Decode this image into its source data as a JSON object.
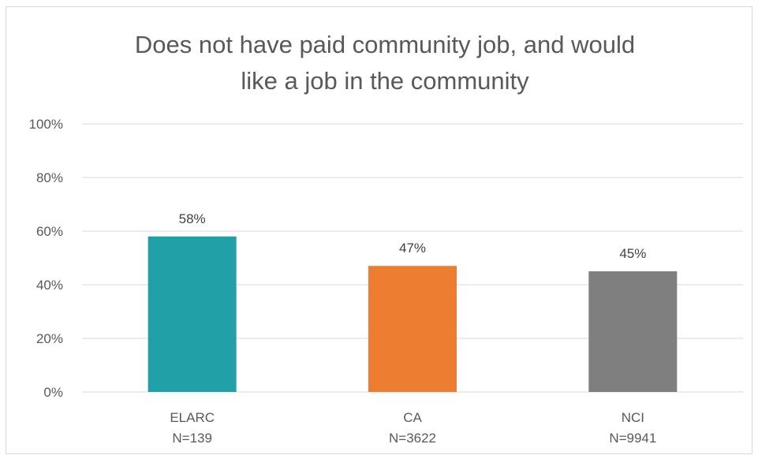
{
  "chart_data": {
    "type": "bar",
    "title_lines": [
      "Does not have paid community job, and would",
      "like a job in the community"
    ],
    "categories": [
      {
        "name": "ELARC",
        "n": "N=139"
      },
      {
        "name": "CA",
        "n": "N=3622"
      },
      {
        "name": "NCI",
        "n": "N=9941"
      }
    ],
    "values": [
      58,
      47,
      45
    ],
    "data_labels": [
      "58%",
      "47%",
      "45%"
    ],
    "colors": [
      "#21A0A8",
      "#ED7D31",
      "#7F7F7F"
    ],
    "ylim": [
      0,
      100
    ],
    "yticks": [
      {
        "value": 0,
        "label": "0%"
      },
      {
        "value": 20,
        "label": "20%"
      },
      {
        "value": 40,
        "label": "40%"
      },
      {
        "value": 60,
        "label": "60%"
      },
      {
        "value": 80,
        "label": "80%"
      },
      {
        "value": 100,
        "label": "100%"
      }
    ],
    "grid": true,
    "legend": "none"
  }
}
